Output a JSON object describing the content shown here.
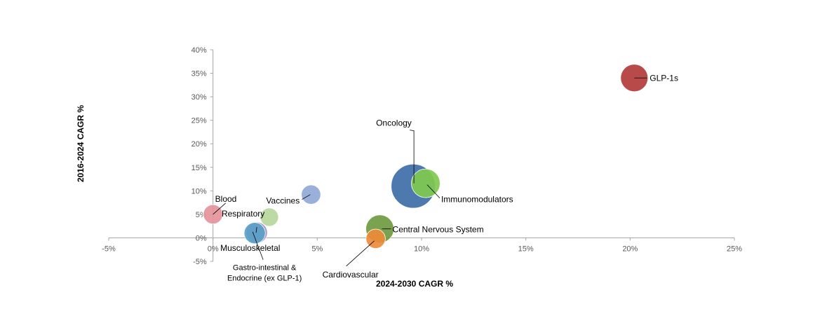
{
  "chart_data": {
    "type": "scatter",
    "title": "",
    "xlabel": "2024-2030 CAGR %",
    "ylabel": "2016-2024 CAGR %",
    "xlim": [
      -5,
      25
    ],
    "ylim": [
      -5,
      40
    ],
    "x_ticks": [
      -5,
      0,
      5,
      10,
      15,
      20,
      25
    ],
    "y_ticks": [
      -5,
      0,
      5,
      10,
      15,
      20,
      25,
      30,
      35,
      40
    ],
    "x_tick_labels": [
      "-5%",
      "0%",
      "5%",
      "10%",
      "15%",
      "20%",
      "25%"
    ],
    "y_tick_labels": [
      "-5%",
      "0%",
      "5%",
      "10%",
      "15%",
      "20%",
      "25%",
      "30%",
      "35%",
      "40%"
    ],
    "grid": false,
    "legend": "none",
    "points": [
      {
        "name": "GLP-1s",
        "x": 20.2,
        "y": 34.0,
        "size": 1.0,
        "color": "#b23b3b",
        "label": [
          "GLP-1s"
        ]
      },
      {
        "name": "Oncology",
        "x": 9.6,
        "y": 11.0,
        "size": 2.6,
        "color": "#3e6ea7",
        "label": [
          "Oncology"
        ]
      },
      {
        "name": "Immunomodulators",
        "x": 10.2,
        "y": 11.6,
        "size": 1.1,
        "color": "#7fc94f",
        "label": [
          "Immunomodulators"
        ]
      },
      {
        "name": "Central Nervous System",
        "x": 8.0,
        "y": 1.9,
        "size": 1.05,
        "color": "#6f9a40",
        "label": [
          "Central Nervous System"
        ]
      },
      {
        "name": "Cardiovascular",
        "x": 7.8,
        "y": -0.2,
        "size": 0.5,
        "color": "#ee8a3a",
        "label": [
          "Cardiovascular"
        ]
      },
      {
        "name": "Vaccines",
        "x": 4.7,
        "y": 9.2,
        "size": 0.5,
        "color": "#91a9d8",
        "label": [
          "Vaccines"
        ]
      },
      {
        "name": "Respiratory",
        "x": 2.7,
        "y": 4.4,
        "size": 0.45,
        "color": "#b7d79c",
        "label": [
          "Respiratory"
        ]
      },
      {
        "name": "Blood",
        "x": 0.0,
        "y": 5.0,
        "size": 0.5,
        "color": "#e4949a",
        "label": [
          "Blood"
        ]
      },
      {
        "name": "Musculoskeletal",
        "x": 2.1,
        "y": 1.1,
        "size": 0.6,
        "color": "#a38fc7",
        "label": [
          "Musculoskeletal"
        ]
      },
      {
        "name": "Gastro-intestinal & Endocrine (ex GLP-1)",
        "x": 2.0,
        "y": 1.0,
        "size": 0.6,
        "color": "#5aa0c8",
        "label": [
          "Gastro-intestinal &",
          "Endocrine (ex GLP-1)"
        ]
      }
    ]
  }
}
